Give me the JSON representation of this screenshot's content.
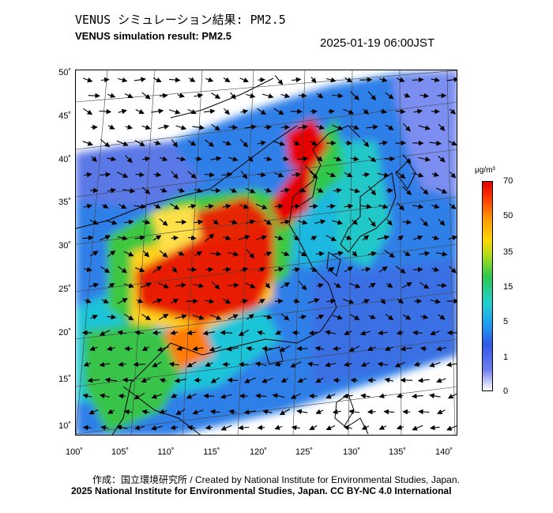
{
  "header": {
    "title_jp": "VENUS シミュレーション結果: PM2.5",
    "title_en": "VENUS simulation result: PM2.5",
    "timestamp": "2025-01-19 06:00JST"
  },
  "map": {
    "lat_ticks": [
      "50˚",
      "45˚",
      "40˚",
      "35˚",
      "30˚",
      "25˚",
      "20˚",
      "15˚",
      "10˚"
    ],
    "lon_ticks": [
      "100˚",
      "105˚",
      "110˚",
      "115˚",
      "120˚",
      "125˚",
      "130˚",
      "135˚",
      "140˚"
    ]
  },
  "colorbar": {
    "unit": "μg/m³",
    "labels": [
      "70",
      "50",
      "35",
      "15",
      "5",
      "1",
      "0"
    ]
  },
  "footer": {
    "credit_jp": "作成：国立環境研究所 / Created by National Institute for Environmental Studies, Japan.",
    "copyright": "2025 National Institute for Environmental Studies, Japan. CC BY-NC 4.0 International"
  },
  "colors": {
    "high": "#e00000",
    "mid_high": "#ff9a00",
    "mid": "#2ec84c",
    "low": "#1e9ff0",
    "lowest": "#6e7df0"
  }
}
